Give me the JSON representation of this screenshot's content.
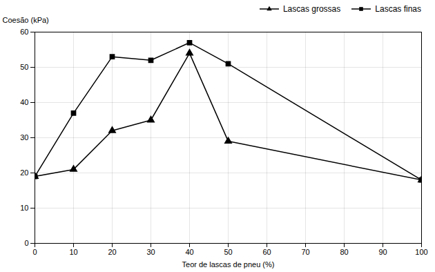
{
  "chart_data": {
    "type": "line",
    "xlabel": "Teor de lascas de pneu (%)",
    "ylabel": "Coesão (kPa)",
    "x": [
      0,
      10,
      20,
      30,
      40,
      50,
      100
    ],
    "series": [
      {
        "name": "Lascas grossas",
        "color": "#000000",
        "marker": "triangle",
        "values": [
          19,
          21,
          32,
          35,
          54,
          29,
          18
        ]
      },
      {
        "name": "Lascas finas",
        "color": "#000000",
        "marker": "square",
        "values": [
          19,
          37,
          53,
          52,
          57,
          51,
          18
        ]
      }
    ],
    "xlim": [
      0,
      100
    ],
    "ylim": [
      0,
      60
    ],
    "xticks": [
      0,
      10,
      20,
      30,
      40,
      50,
      60,
      70,
      80,
      90,
      100
    ],
    "yticks": [
      0,
      10,
      20,
      30,
      40,
      50,
      60
    ],
    "grid": true,
    "legend": "upper right"
  }
}
